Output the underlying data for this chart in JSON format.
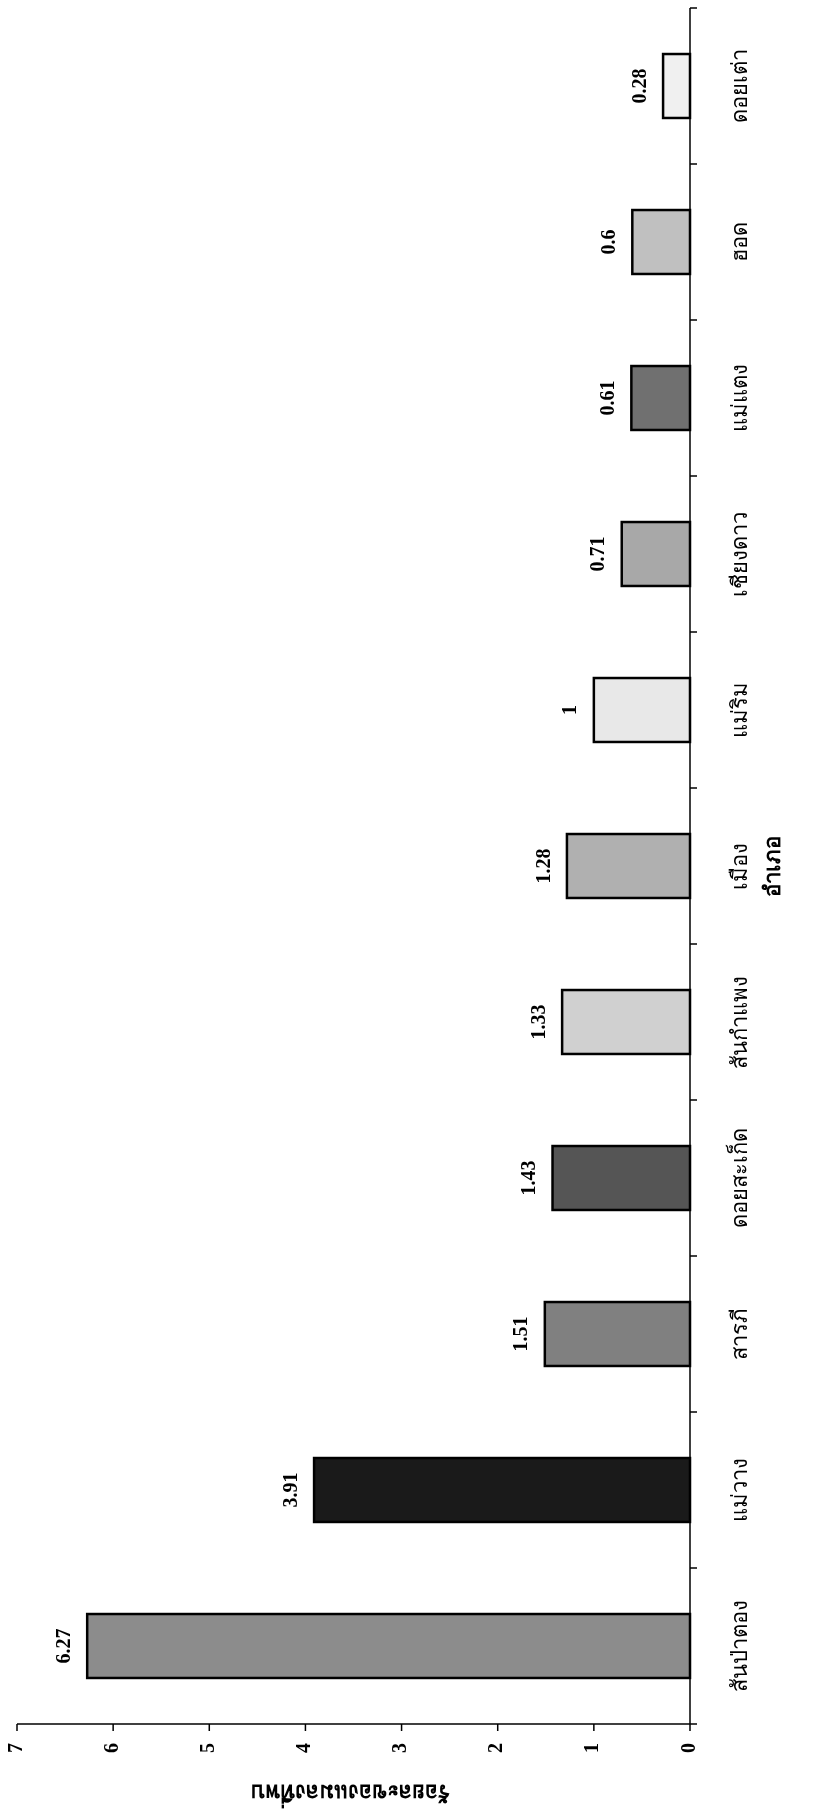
{
  "chart_data": {
    "type": "bar",
    "orientation": "horizontal",
    "xlabel": "ร้อยละของแมลงที่พบ",
    "ylabel": "อำเภอ",
    "categories": [
      "ดอยเต่า",
      "ฮอด",
      "แม่แตง",
      "เชียงดาว",
      "แม่ริม",
      "เมือง",
      "สันกำแพง",
      "ดอยสะเก็ด",
      "สารภี",
      "แม่วาง",
      "สันป่าตอง"
    ],
    "values": [
      0.28,
      0.6,
      0.61,
      0.71,
      1,
      1.28,
      1.33,
      1.43,
      1.51,
      3.91,
      6.27
    ],
    "colors": [
      "#f0f0f0",
      "#c0c0c0",
      "#707070",
      "#a8a8a8",
      "#e8e8e8",
      "#b0b0b0",
      "#d0d0d0",
      "#555555",
      "#808080",
      "#1a1a1a",
      "#8c8c8c"
    ],
    "xlim": [
      7,
      0
    ],
    "xticks": [
      0,
      1,
      2,
      3,
      4,
      5,
      6,
      7
    ],
    "data_labels": true
  }
}
